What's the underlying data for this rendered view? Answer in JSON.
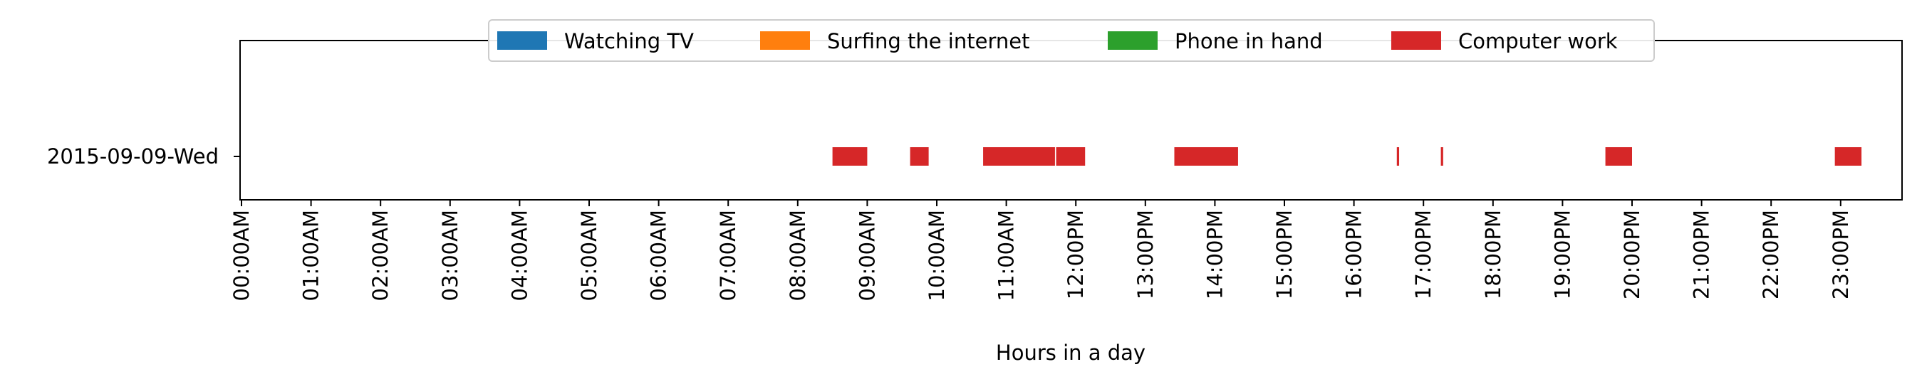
{
  "chart_data": {
    "type": "timeline",
    "xlabel": "Hours in a day",
    "ylabel": "",
    "xlim_hours": [
      0,
      24
    ],
    "grid": false,
    "legend_placement": "upper center",
    "categories": [
      "2015-09-09-Wed"
    ],
    "x_ticks": [
      "00:00AM",
      "01:00AM",
      "02:00AM",
      "03:00AM",
      "04:00AM",
      "05:00AM",
      "06:00AM",
      "07:00AM",
      "08:00AM",
      "09:00AM",
      "10:00AM",
      "11:00AM",
      "12:00PM",
      "13:00PM",
      "14:00PM",
      "15:00PM",
      "16:00PM",
      "17:00PM",
      "18:00PM",
      "19:00PM",
      "20:00PM",
      "21:00PM",
      "22:00PM",
      "23:00PM"
    ],
    "series": [
      {
        "name": "Watching TV",
        "color": "#1f77b4",
        "intervals": []
      },
      {
        "name": "Surfing the internet",
        "color": "#ff7f0e",
        "intervals": []
      },
      {
        "name": "Phone in hand",
        "color": "#2ca02c",
        "intervals": []
      },
      {
        "name": "Computer work",
        "color": "#d62728",
        "intervals": [
          {
            "category": "2015-09-09-Wed",
            "start": "08:30",
            "end": "09:00"
          },
          {
            "category": "2015-09-09-Wed",
            "start": "09:37",
            "end": "09:53"
          },
          {
            "category": "2015-09-09-Wed",
            "start": "10:40",
            "end": "11:42"
          },
          {
            "category": "2015-09-09-Wed",
            "start": "11:43",
            "end": "12:08"
          },
          {
            "category": "2015-09-09-Wed",
            "start": "13:25",
            "end": "14:20"
          },
          {
            "category": "2015-09-09-Wed",
            "start": "16:37",
            "end": "16:39"
          },
          {
            "category": "2015-09-09-Wed",
            "start": "17:15",
            "end": "17:17"
          },
          {
            "category": "2015-09-09-Wed",
            "start": "19:37",
            "end": "20:00"
          },
          {
            "category": "2015-09-09-Wed",
            "start": "22:55",
            "end": "23:18"
          }
        ]
      }
    ]
  }
}
